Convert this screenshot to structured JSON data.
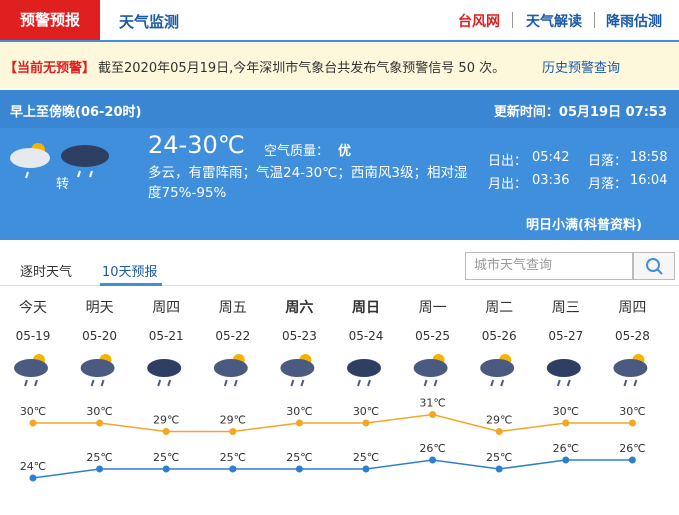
{
  "nav": {
    "active": "预警预报",
    "tab2": "天气监测",
    "links": [
      "台风网",
      "天气解读",
      "降雨估测"
    ]
  },
  "alert": {
    "status": "【当前无预警】",
    "text": "截至2020年05月19日,今年深圳市气象台共发布气象预警信号 50 次。",
    "link": "历史预警查询"
  },
  "today": {
    "period": "早上至傍晚(06-20时)",
    "updated": "更新时间：05月19日 07:53",
    "turn": "转",
    "temp": "24-30℃",
    "air_label": "空气质量：",
    "air": "优",
    "desc": "多云，有雷阵雨；气温24-30℃；西南风3级；相对湿度75%-95%",
    "sun": [
      [
        "日出：",
        "05:42"
      ],
      [
        "日落：",
        "18:58"
      ],
      [
        "月出：",
        "03:36"
      ],
      [
        "月落：",
        "16:04"
      ]
    ],
    "note": "明日小满(科普资料)"
  },
  "tabs": [
    "逐时天气",
    "10天预报"
  ],
  "search_placeholder": "城市天气查询",
  "forecast": {
    "days": [
      "今天",
      "明天",
      "周四",
      "周五",
      "周六",
      "周日",
      "周一",
      "周二",
      "周三",
      "周四"
    ],
    "dates": [
      "05-19",
      "05-20",
      "05-21",
      "05-22",
      "05-23",
      "05-24",
      "05-25",
      "05-26",
      "05-27",
      "05-28"
    ],
    "highs": [
      30,
      30,
      29,
      29,
      30,
      30,
      31,
      29,
      30,
      30
    ],
    "high_labels": [
      "30℃",
      "30℃",
      "29℃",
      "29℃",
      "30℃",
      "30℃",
      "31℃",
      "29℃",
      "30℃",
      "30℃"
    ],
    "lows": [
      24,
      25,
      25,
      25,
      25,
      25,
      26,
      25,
      26,
      26
    ],
    "low_labels": [
      "24℃",
      "25℃",
      "25℃",
      "25℃",
      "25℃",
      "25℃",
      "26℃",
      "25℃",
      "26℃",
      "26℃"
    ]
  }
}
